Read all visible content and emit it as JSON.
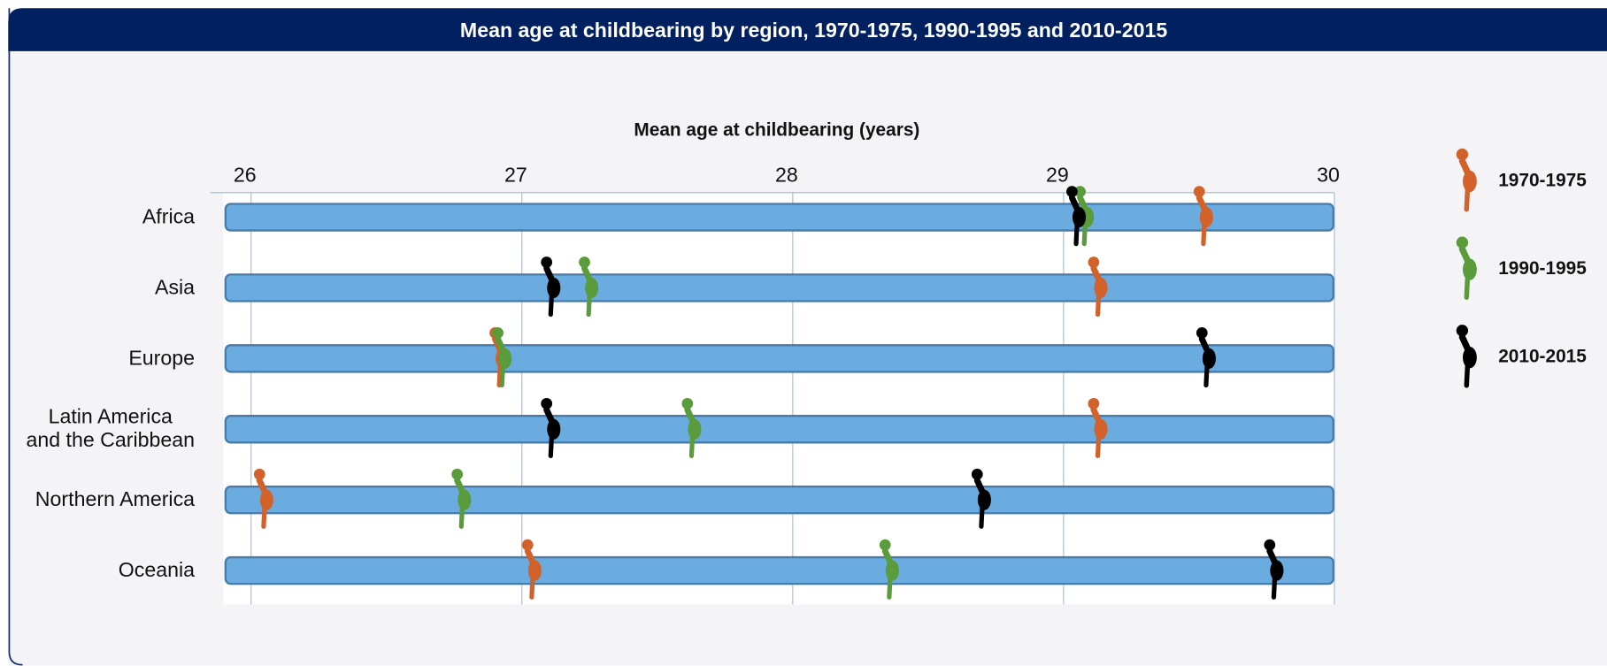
{
  "chart_data": {
    "type": "dot",
    "title": "Mean age at childbearing by region, 1970-1975, 1990-1995 and 2010-2015",
    "x_label": "Mean age at childbearing (years)",
    "categories": [
      "Africa",
      "Asia",
      "Europe",
      "Latin America\nand the Caribbean",
      "Northern America",
      "Oceania"
    ],
    "series": [
      {
        "name": "1970-1975",
        "color": "#d2622a",
        "values": [
          29.52,
          29.13,
          26.92,
          29.13,
          26.05,
          27.04
        ]
      },
      {
        "name": "1990-1995",
        "color": "#5a9b3c",
        "values": [
          29.08,
          27.25,
          26.93,
          27.63,
          26.78,
          28.36
        ]
      },
      {
        "name": "2010-2015",
        "color": "#000000",
        "values": [
          29.05,
          27.11,
          29.53,
          27.11,
          28.7,
          29.78
        ]
      }
    ],
    "xlim": [
      26,
      30
    ],
    "xticks": [
      26,
      27,
      28,
      29,
      30
    ],
    "grid": true,
    "legend": "right"
  }
}
